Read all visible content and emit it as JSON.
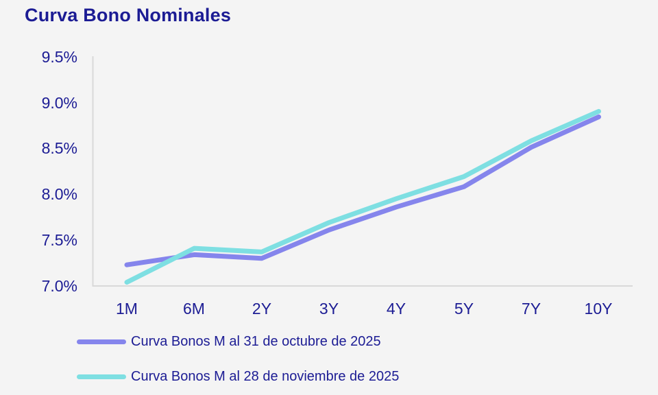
{
  "title": "Curva Bono Nominales",
  "colors": {
    "background": "#f4f4f4",
    "text_navy": "#1c1c94",
    "axis_line": "#d9d9d9",
    "series_october_purple": "#8585ec",
    "series_november_cyan": "#7edfe2"
  },
  "chart_data": {
    "type": "line",
    "title": "Curva Bono Nominales",
    "categories": [
      "1M",
      "6M",
      "2Y",
      "3Y",
      "4Y",
      "5Y",
      "7Y",
      "10Y"
    ],
    "series": [
      {
        "name": "Curva Bonos M al 31 de octubre de 2025",
        "color": "#8585ec",
        "values": [
          7.23,
          7.34,
          7.3,
          7.61,
          7.86,
          8.08,
          8.51,
          8.84
        ]
      },
      {
        "name": "Curva Bonos M al 28 de noviembre de 2025",
        "color": "#7edfe2",
        "values": [
          7.04,
          7.41,
          7.37,
          7.69,
          7.95,
          8.19,
          8.58,
          8.9
        ]
      }
    ],
    "xlabel": "",
    "ylabel": "",
    "ylim": [
      7.0,
      9.5
    ],
    "y_tick_step": 0.5,
    "y_tick_labels_top_to_bottom": [
      "9.5%",
      "9.0%",
      "8.5%",
      "8.0%",
      "7.5%",
      "7.0%"
    ],
    "unit": "percent",
    "grid": false,
    "legend_position": "bottom-left",
    "line_style": "thick-rounded"
  }
}
